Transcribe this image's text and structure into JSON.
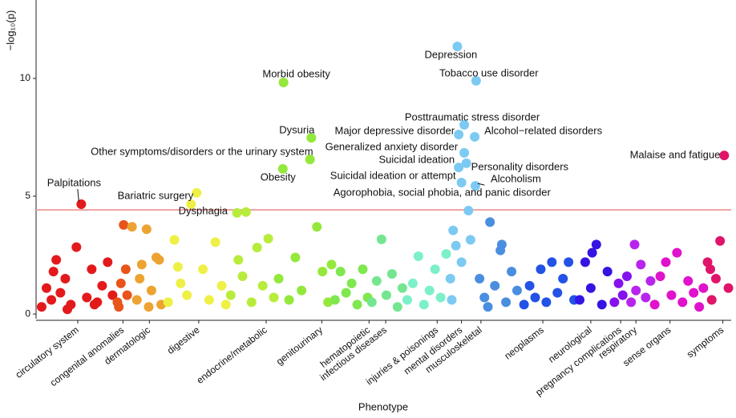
{
  "chart_data": {
    "type": "scatter",
    "x_label": "Phenotype",
    "y_label": "−log₁₀(p)",
    "xlim": [
      0,
      100
    ],
    "ylim": [
      -0.2,
      13.33
    ],
    "yticks": [
      0,
      5,
      10
    ],
    "xticks": [
      {
        "value": 6.0,
        "label": "circulatory system"
      },
      {
        "value": 12.5,
        "label": "congenital anomalies"
      },
      {
        "value": 16.3,
        "label": "dermatologic"
      },
      {
        "value": 23.4,
        "label": "digestive"
      },
      {
        "value": 33.1,
        "label": "endocrine/metabolic"
      },
      {
        "value": 41.1,
        "label": "genitourinary"
      },
      {
        "value": 47.9,
        "label": "hematopoietic"
      },
      {
        "value": 50.3,
        "label": "infectious diseases"
      },
      {
        "value": 57.7,
        "label": "injuries & poisonings"
      },
      {
        "value": 61.2,
        "label": "mental disorders"
      },
      {
        "value": 64.0,
        "label": "musculoskeletal"
      },
      {
        "value": 72.9,
        "label": "neoplasms"
      },
      {
        "value": 79.8,
        "label": "neurological"
      },
      {
        "value": 84.1,
        "label": "pregnancy complications"
      },
      {
        "value": 86.3,
        "label": "respiratory"
      },
      {
        "value": 91.2,
        "label": "sense organs"
      },
      {
        "value": 98.8,
        "label": "symptoms"
      }
    ],
    "threshold": 4.42,
    "threshold_color": "#f2a0a0",
    "series": [
      {
        "color": "#e31a1c",
        "x": [
          0.8,
          1.5,
          2.2,
          2.9,
          3.5,
          4.2,
          5,
          5.8,
          6.5,
          7.3,
          8,
          8.8,
          9.5,
          10.3,
          11,
          4.5,
          2.5,
          8.4
        ],
        "values": [
          0.3,
          1.1,
          0.6,
          2.3,
          0.9,
          1.5,
          0.4,
          2.84,
          4.66,
          0.7,
          1.9,
          0.5,
          1.2,
          2.2,
          0.8,
          0.2,
          1.8,
          0.4
        ],
        "labels": [
          null,
          null,
          null,
          null,
          null,
          null,
          null,
          null,
          "Palpitations",
          null,
          null,
          null,
          null,
          null,
          null,
          null,
          null,
          null
        ]
      },
      {
        "color": "#e8541a",
        "x": [
          11.7,
          12.2,
          12.6,
          13.1,
          11.9,
          12.9
        ],
        "values": [
          0.5,
          1.3,
          3.78,
          0.8,
          0.3,
          1.9
        ]
      },
      {
        "color": "#eda332",
        "x": [
          13.8,
          14.5,
          15.2,
          15.9,
          16.6,
          17.3,
          18,
          14.9,
          16.2,
          17.7
        ],
        "values": [
          3.7,
          0.6,
          2.1,
          3.6,
          1.0,
          2.4,
          0.4,
          1.5,
          0.3,
          2.3
        ]
      },
      {
        "color": "#eef046",
        "x": [
          19,
          19.9,
          20.8,
          21.7,
          22.3,
          23.1,
          24,
          24.9,
          25.8,
          26.7,
          27.3,
          20.4
        ],
        "values": [
          0.5,
          3.15,
          1.3,
          0.8,
          4.66,
          5.14,
          1.9,
          0.6,
          3.05,
          1.2,
          0.4,
          2.0
        ],
        "labels": [
          null,
          null,
          null,
          null,
          "Dysphagia",
          "Bariatric surgery",
          null,
          null,
          null,
          null,
          null,
          null
        ]
      },
      {
        "color": "#b8ec3c",
        "x": [
          28,
          28.9,
          29.7,
          30.2,
          31,
          31.8,
          32.6,
          33.4,
          34.2,
          29.1
        ],
        "values": [
          0.8,
          4.29,
          1.6,
          4.33,
          0.5,
          2.82,
          1.2,
          3.2,
          0.7,
          2.3
        ]
      },
      {
        "color": "#94e83c",
        "x": [
          34.9,
          35.5,
          35.6,
          36.4,
          37.3,
          38.2,
          39.4,
          39.6,
          40.4,
          41.2,
          42,
          42.5
        ],
        "values": [
          1.5,
          6.16,
          9.83,
          0.6,
          2.4,
          1.0,
          6.56,
          7.48,
          3.7,
          1.8,
          0.5,
          2.1
        ],
        "labels": [
          null,
          "Obesity",
          "Morbid obesity",
          null,
          null,
          null,
          "Other symptoms/disorders or the urinary system",
          "Dysuria",
          null,
          null,
          null,
          null
        ]
      },
      {
        "color": "#7ee84e",
        "x": [
          43,
          43.8,
          44.6,
          45.4,
          46.2,
          47,
          47.7
        ],
        "values": [
          0.6,
          1.8,
          0.9,
          1.3,
          0.4,
          1.9,
          0.7
        ]
      },
      {
        "color": "#74e690",
        "x": [
          48.3,
          49,
          49.7,
          50.4,
          51.2,
          52,
          52.7
        ],
        "values": [
          0.5,
          1.4,
          3.17,
          0.8,
          1.7,
          0.3,
          1.1
        ]
      },
      {
        "color": "#7cf0c8",
        "x": [
          53.4,
          54.2,
          55,
          55.8,
          56.6,
          57.4,
          58.2,
          59
        ],
        "values": [
          0.6,
          1.3,
          2.45,
          0.4,
          1.0,
          1.9,
          0.7,
          2.55
        ]
      },
      {
        "color": "#7ccaf2",
        "x": [
          59.6,
          60,
          60.4,
          60.6,
          60.8,
          60.8,
          61.2,
          61.2,
          61.6,
          61.6,
          62.2,
          62.5,
          59.8,
          61.9,
          63.1,
          63.2,
          63.3
        ],
        "values": [
          1.5,
          3.55,
          2.9,
          11.36,
          7.62,
          6.22,
          5.58,
          2.2,
          8.03,
          6.84,
          4.39,
          3.15,
          0.6,
          6.4,
          7.52,
          5.44,
          9.9
        ],
        "labels": [
          null,
          null,
          null,
          "Depression",
          "Major depressive disorder",
          "Suicidal ideation",
          "Suicidal ideation or attempt",
          null,
          "Posttraumatic stress disorder",
          "Generalized anxiety disorder",
          "Agorophobia, social phobia, and panic disorder",
          null,
          null,
          "Personality disorders",
          "Alcohol−related disorders",
          "Alcoholism",
          "Tobacco use disorder"
        ]
      },
      {
        "color": "#4a8ee0",
        "x": [
          63.8,
          64.5,
          65.3,
          66,
          66.8,
          67.6,
          68.4,
          69.2,
          67,
          65
        ],
        "values": [
          1.5,
          0.7,
          3.9,
          1.2,
          2.7,
          0.5,
          1.8,
          1.0,
          2.95,
          0.3
        ]
      },
      {
        "color": "#2252e6",
        "x": [
          70.2,
          71,
          71.8,
          72.6,
          73.4,
          74.2,
          75,
          75.8,
          76.6,
          77.4
        ],
        "values": [
          0.4,
          1.2,
          0.7,
          1.9,
          0.5,
          2.2,
          0.9,
          1.5,
          2.2,
          0.6
        ]
      },
      {
        "color": "#3414e2",
        "x": [
          78.2,
          79,
          79.8,
          80.6,
          81.4,
          82.2,
          80
        ],
        "values": [
          0.6,
          2.2,
          1.1,
          2.95,
          0.4,
          1.8,
          2.6
        ]
      },
      {
        "color": "#8412ee",
        "x": [
          83.2,
          83.8,
          84.4,
          85
        ],
        "values": [
          0.5,
          1.3,
          0.8,
          1.6
        ]
      },
      {
        "color": "#b824ee",
        "x": [
          85.6,
          86.3,
          87,
          87.7,
          88.4,
          86.1
        ],
        "values": [
          0.5,
          1.0,
          2.1,
          0.7,
          1.4,
          2.95
        ]
      },
      {
        "color": "#e012cc",
        "x": [
          89,
          89.8,
          90.6,
          91.4,
          92.2,
          93,
          93.8,
          94.6,
          95.4,
          96
        ],
        "values": [
          0.4,
          1.6,
          2.2,
          0.8,
          2.6,
          0.5,
          1.4,
          0.9,
          0.3,
          1.1
        ]
      },
      {
        "color": "#e0146a",
        "x": [
          96.6,
          97.2,
          97.8,
          98.4,
          99,
          99.6,
          97
        ],
        "values": [
          2.2,
          0.6,
          1.5,
          3.1,
          6.73,
          1.1,
          1.9
        ],
        "labels": [
          null,
          null,
          null,
          null,
          "Malaise and fatigue",
          null,
          null
        ]
      }
    ]
  }
}
